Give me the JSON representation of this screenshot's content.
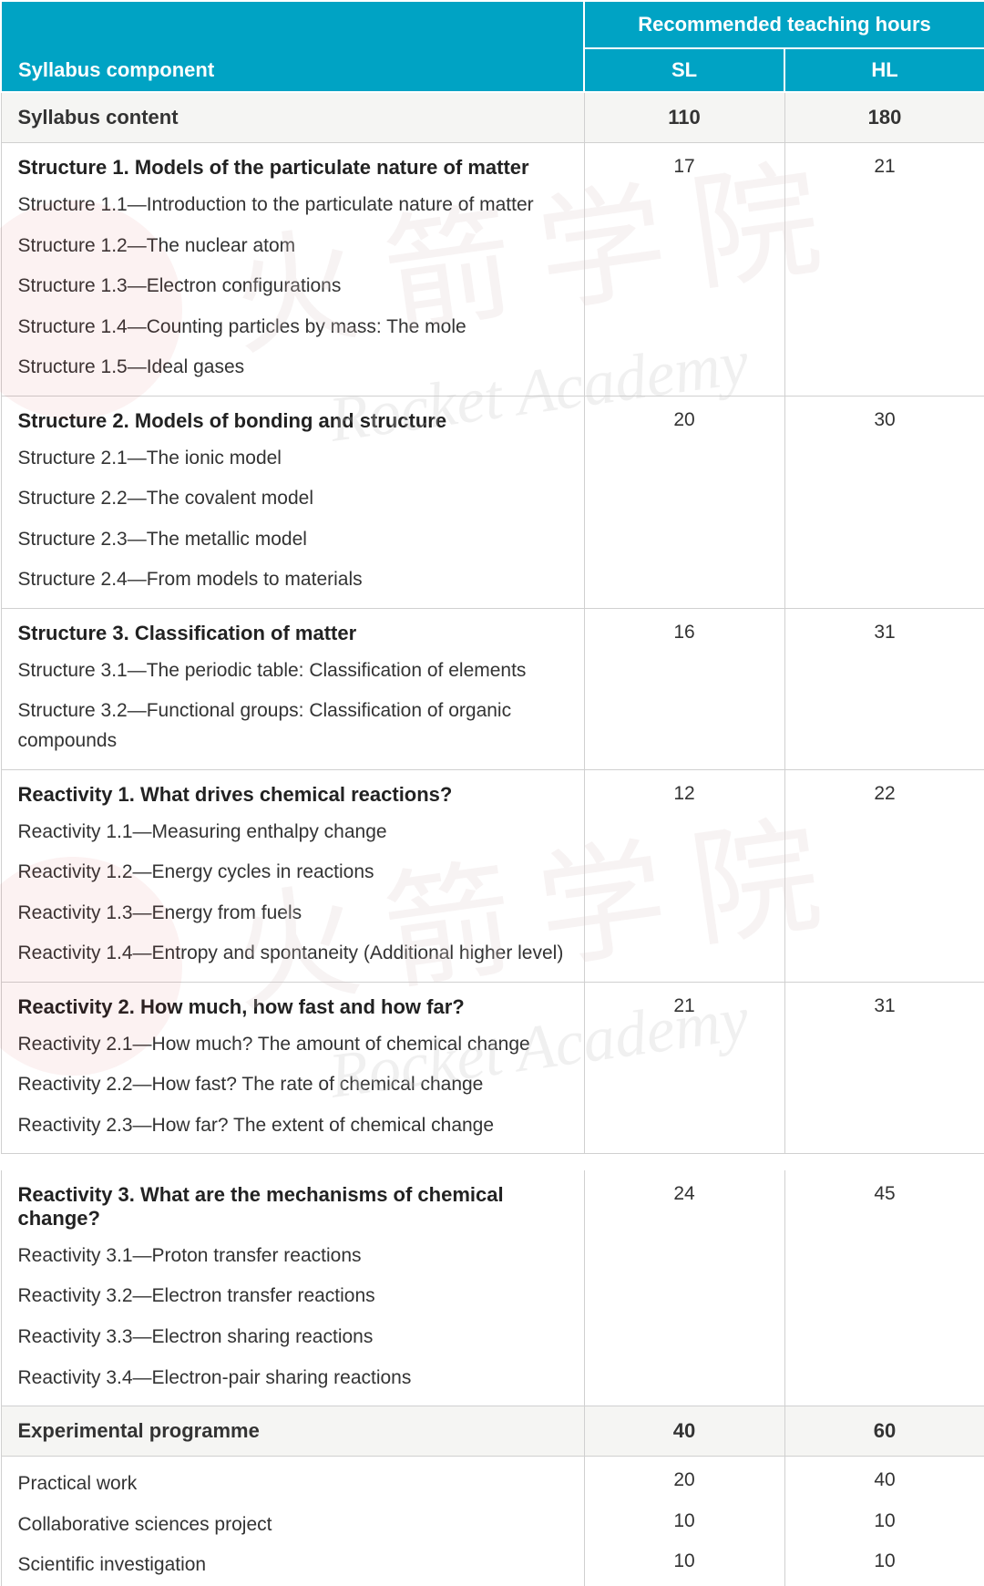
{
  "header": {
    "main": "Syllabus component",
    "group": "Recommended teaching hours",
    "sl": "SL",
    "hl": "HL"
  },
  "totals": {
    "content_label": "Syllabus content",
    "content_sl": "110",
    "content_hl": "180",
    "exp_label": "Experimental programme",
    "exp_sl": "40",
    "exp_hl": "60"
  },
  "sections": [
    {
      "title": "Structure 1. Models of the particulate nature of matter",
      "sl": "17",
      "hl": "21",
      "subs": [
        "Structure 1.1—Introduction to the particulate nature of matter",
        "Structure 1.2—The nuclear atom",
        "Structure 1.3—Electron configurations",
        "Structure 1.4—Counting particles by mass: The mole",
        "Structure 1.5—Ideal gases"
      ]
    },
    {
      "title": "Structure 2. Models of bonding and structure",
      "sl": "20",
      "hl": "30",
      "subs": [
        "Structure 2.1—The ionic model",
        "Structure 2.2—The covalent model",
        "Structure 2.3—The metallic model",
        "Structure 2.4—From models to materials"
      ]
    },
    {
      "title": "Structure 3. Classification of matter",
      "sl": "16",
      "hl": "31",
      "subs": [
        "Structure 3.1—The periodic table: Classification of elements",
        "Structure 3.2—Functional groups: Classification of organic compounds"
      ]
    },
    {
      "title": "Reactivity 1. What drives chemical reactions?",
      "sl": "12",
      "hl": "22",
      "subs": [
        "Reactivity 1.1—Measuring enthalpy change",
        "Reactivity 1.2—Energy cycles in reactions",
        "Reactivity 1.3—Energy from fuels",
        "Reactivity 1.4—Entropy and spontaneity (Additional higher level)"
      ]
    },
    {
      "title": "Reactivity 2. How much, how fast and how far?",
      "sl": "21",
      "hl": "31",
      "subs": [
        "Reactivity 2.1—How much? The amount of chemical change",
        "Reactivity 2.2—How fast? The rate of chemical change",
        "Reactivity 2.3—How far? The extent of chemical change"
      ]
    },
    {
      "title": "Reactivity 3. What are the mechanisms of chemical change?",
      "sl": "24",
      "hl": "45",
      "subs": [
        "Reactivity 3.1—Proton transfer reactions",
        "Reactivity 3.2—Electron transfer reactions",
        "Reactivity 3.3—Electron sharing reactions",
        "Reactivity 3.4—Electron-pair sharing reactions"
      ]
    }
  ],
  "exp_rows": [
    {
      "label": "Practical work",
      "sl": "20",
      "hl": "40"
    },
    {
      "label": "Collaborative sciences project",
      "sl": "10",
      "hl": "10"
    },
    {
      "label": "Scientific investigation",
      "sl": "10",
      "hl": "10"
    }
  ],
  "watermarks": {
    "cn": "火箭学院",
    "en": "Rocket Academy"
  },
  "colors": {
    "header_bg": "#00a3c4",
    "header_fg": "#ffffff",
    "border": "#d0d0d0",
    "total_bg": "#f5f5f3"
  }
}
